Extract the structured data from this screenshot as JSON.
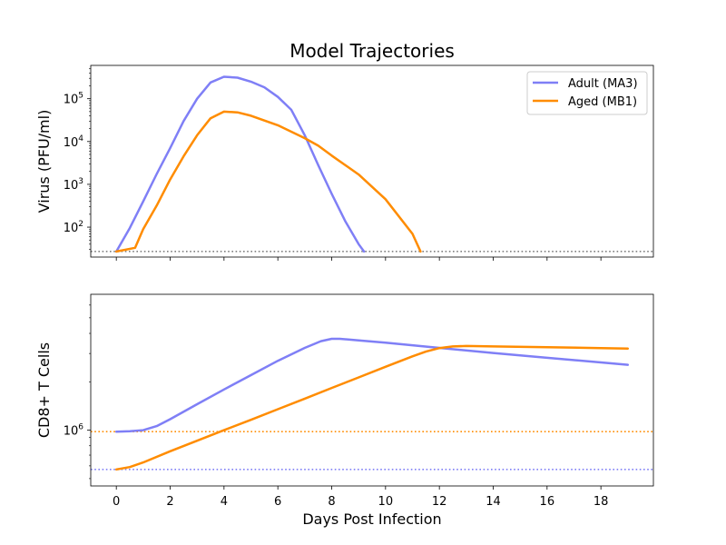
{
  "title": "Model Trajectories",
  "colors": {
    "adult": "#7f7ff6",
    "aged": "#ff8c00",
    "limit": "#808080"
  },
  "chart_data": [
    {
      "type": "line",
      "title": "Model Trajectories",
      "ylabel": "Virus (PFU/ml)",
      "xlabel": "",
      "yscale": "log",
      "xlim": [
        -0.95,
        19.95
      ],
      "ylim": [
        20,
        600000
      ],
      "yticks": [
        {
          "value": 100,
          "base": "10",
          "exp": "2"
        },
        {
          "value": 1000,
          "base": "10",
          "exp": "3"
        },
        {
          "value": 10000,
          "base": "10",
          "exp": "4"
        },
        {
          "value": 100000,
          "base": "10",
          "exp": "5"
        }
      ],
      "legend": {
        "position": "top-right"
      },
      "reference_lines": [
        {
          "y": 27,
          "color": "#808080",
          "style": "dotted"
        }
      ],
      "series": [
        {
          "name": "Adult (MA3)",
          "color": "#7f7ff6",
          "x": [
            0,
            0.5,
            1,
            1.5,
            2,
            2.5,
            3,
            3.5,
            4,
            4.5,
            5,
            5.5,
            6,
            6.5,
            7,
            7.5,
            8,
            8.5,
            9,
            9.2
          ],
          "y": [
            27,
            95,
            400,
            1750,
            7000,
            30000,
            100000,
            240000,
            325000,
            310000,
            250000,
            185000,
            110000,
            55000,
            14000,
            2800,
            600,
            140,
            40,
            27
          ]
        },
        {
          "name": "Aged (MB1)",
          "color": "#ff8c00",
          "x": [
            0,
            0.7,
            1,
            1.5,
            2,
            2.5,
            3,
            3.5,
            4,
            4.5,
            5,
            6,
            7,
            7.5,
            8,
            9,
            10,
            11,
            11.3
          ],
          "y": [
            27,
            33,
            90,
            320,
            1300,
            4500,
            14000,
            35000,
            50000,
            48000,
            40000,
            24000,
            12000,
            8000,
            4700,
            1700,
            450,
            70,
            27
          ]
        }
      ]
    },
    {
      "type": "line",
      "title": "",
      "ylabel": "CD8+ T Cells",
      "xlabel": "Days Post Infection",
      "yscale": "log",
      "xlim": [
        -0.95,
        19.95
      ],
      "ylim": [
        450000,
        7000000
      ],
      "yticks": [
        {
          "value": 1000000,
          "base": "10",
          "exp": "6"
        }
      ],
      "xticks": [
        0,
        2,
        4,
        6,
        8,
        10,
        12,
        14,
        16,
        18
      ],
      "reference_lines": [
        {
          "y": 980000,
          "color": "#ff8c00",
          "style": "dotted"
        },
        {
          "y": 570000,
          "color": "#7f7ff6",
          "style": "dotted"
        }
      ],
      "series": [
        {
          "name": "Adult (MA3)",
          "color": "#7f7ff6",
          "x": [
            0,
            0.5,
            1,
            1.5,
            2,
            3,
            4,
            5,
            6,
            7,
            7.6,
            8,
            8.3,
            9,
            10,
            12,
            14,
            16,
            18,
            19
          ],
          "y": [
            980000,
            985000,
            1000000,
            1060000,
            1170000,
            1450000,
            1790000,
            2200000,
            2700000,
            3250000,
            3580000,
            3700000,
            3700000,
            3620000,
            3500000,
            3250000,
            3020000,
            2820000,
            2640000,
            2550000
          ]
        },
        {
          "name": "Aged (MB1)",
          "color": "#ff8c00",
          "x": [
            0,
            0.5,
            1,
            2,
            3,
            4,
            5,
            6,
            7,
            8,
            9,
            10,
            11,
            11.5,
            12,
            12.5,
            13,
            14,
            16,
            18,
            19
          ],
          "y": [
            570000,
            590000,
            630000,
            740000,
            860000,
            1000000,
            1160000,
            1350000,
            1570000,
            1830000,
            2130000,
            2480000,
            2880000,
            3080000,
            3240000,
            3320000,
            3340000,
            3320000,
            3280000,
            3240000,
            3220000
          ]
        }
      ]
    }
  ]
}
